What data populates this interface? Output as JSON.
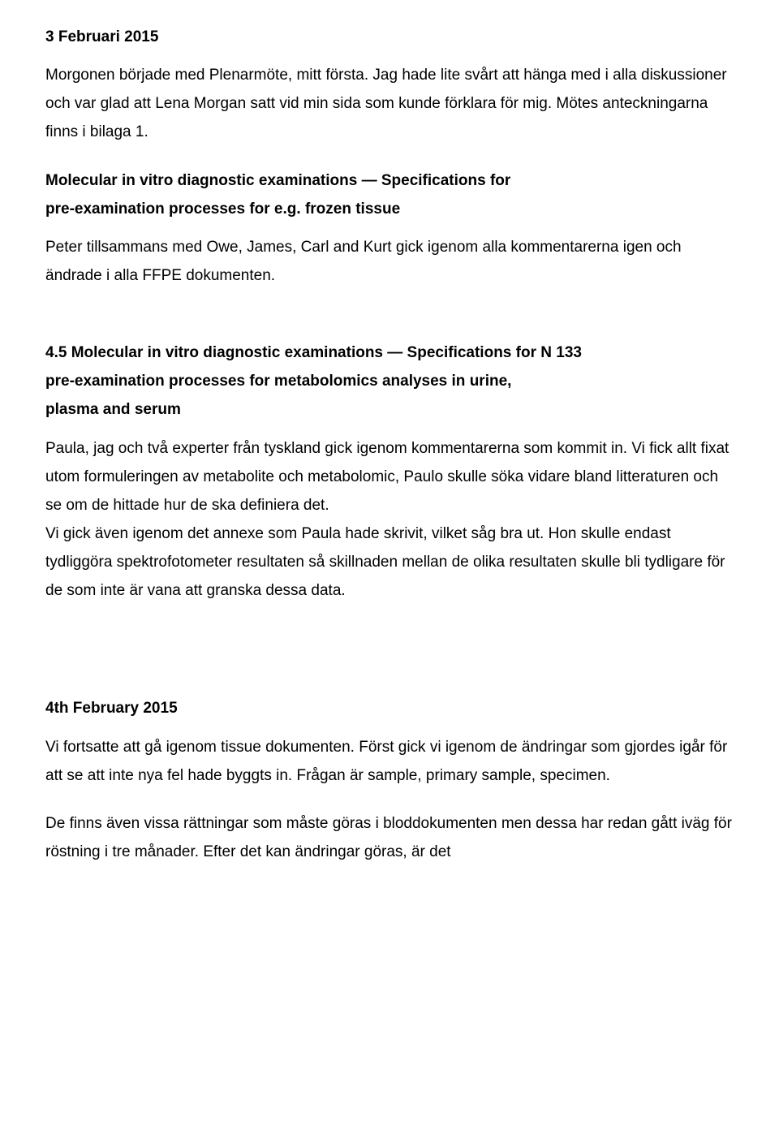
{
  "doc": {
    "date1": "3 Februari 2015",
    "p1": "Morgonen började med Plenarmöte, mitt första. Jag hade lite svårt att hänga med i alla diskussioner och var glad att Lena Morgan satt vid min sida som kunde förklara för mig. Mötes anteckningarna finns i bilaga 1.",
    "h1a": " Molecular in vitro diagnostic examinations — Specifications for",
    "h1b": "pre-examination processes for e.g. frozen tissue",
    "p2": "Peter tillsammans med Owe, James, Carl and Kurt gick igenom alla kommentarerna igen och ändrade i alla FFPE dokumenten.",
    "h2a": "4.5 Molecular in vitro diagnostic examinations — Specifications for N 133",
    "h2b": "pre-examination processes for metabolomics analyses in urine,",
    "h2c": "plasma and serum",
    "p3": "Paula, jag och två experter från tyskland gick igenom kommentarerna som kommit in. Vi fick allt fixat utom formuleringen av metabolite och  metabolomic,  Paulo skulle söka vidare bland litteraturen och se om de hittade hur de ska definiera det.",
    "p4": "Vi gick även igenom det annexe som Paula hade skrivit, vilket såg bra ut. Hon skulle endast tydliggöra spektrofotometer resultaten så skillnaden mellan de olika resultaten skulle bli tydligare för de som inte är vana att granska dessa data.",
    "date2": "4th February 2015",
    "p5": "Vi fortsatte att gå igenom tissue dokumenten. Först gick vi igenom de ändringar som gjordes igår för att se att inte nya fel hade byggts in. Frågan är sample, primary sample, specimen.",
    "p6": "De finns även vissa rättningar som måste göras i bloddokumenten men dessa har redan gått iväg för röstning i tre månader. Efter det kan ändringar göras, är det"
  }
}
